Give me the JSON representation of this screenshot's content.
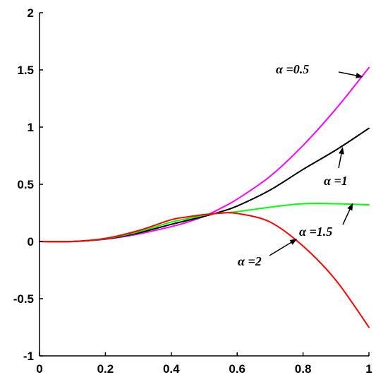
{
  "chart_data": {
    "type": "line",
    "title": "",
    "xlabel": "",
    "ylabel": "",
    "xlim": [
      0,
      1
    ],
    "ylim": [
      -1,
      2
    ],
    "grid": false,
    "legend": "none",
    "x_ticks": [
      "0",
      "0.2",
      "0.4",
      "0.6",
      "0.8",
      "1"
    ],
    "y_ticks": [
      "-1",
      "-0.5",
      "0",
      "0.5",
      "1",
      "1.5",
      "2"
    ],
    "x_tick_values": [
      0,
      0.2,
      0.4,
      0.6,
      0.8,
      1
    ],
    "y_tick_values": [
      -1,
      -0.5,
      0,
      0.5,
      1,
      1.5,
      2
    ],
    "x": [
      0,
      0.1,
      0.2,
      0.3,
      0.4,
      0.45,
      0.5,
      0.55,
      0.6,
      0.7,
      0.8,
      0.9,
      1.0
    ],
    "series": [
      {
        "color": "#ff00ff",
        "values": [
          0,
          0,
          0.02,
          0.065,
          0.13,
          0.17,
          0.22,
          0.29,
          0.37,
          0.57,
          0.84,
          1.16,
          1.52
        ]
      },
      {
        "color": "#000000",
        "values": [
          0,
          0,
          0.022,
          0.075,
          0.15,
          0.185,
          0.22,
          0.26,
          0.31,
          0.45,
          0.63,
          0.8,
          0.99
        ]
      },
      {
        "color": "#00ff00",
        "values": [
          0,
          0,
          0.025,
          0.085,
          0.17,
          0.2,
          0.23,
          0.25,
          0.26,
          0.3,
          0.33,
          0.33,
          0.32
        ]
      },
      {
        "color": "#ff0000",
        "values": [
          0,
          0,
          0.027,
          0.095,
          0.19,
          0.215,
          0.235,
          0.248,
          0.245,
          0.17,
          -0.04,
          -0.34,
          -0.75
        ]
      }
    ],
    "annotations": [
      {
        "text": "α =0.5",
        "points_to": [
          0.98,
          1.44
        ]
      },
      {
        "text": "α =1",
        "points_to": [
          0.92,
          0.82
        ]
      },
      {
        "text": "α =1.5",
        "points_to": [
          0.95,
          0.33
        ]
      },
      {
        "text": "α =2",
        "points_to": [
          0.78,
          0.02
        ]
      }
    ]
  }
}
